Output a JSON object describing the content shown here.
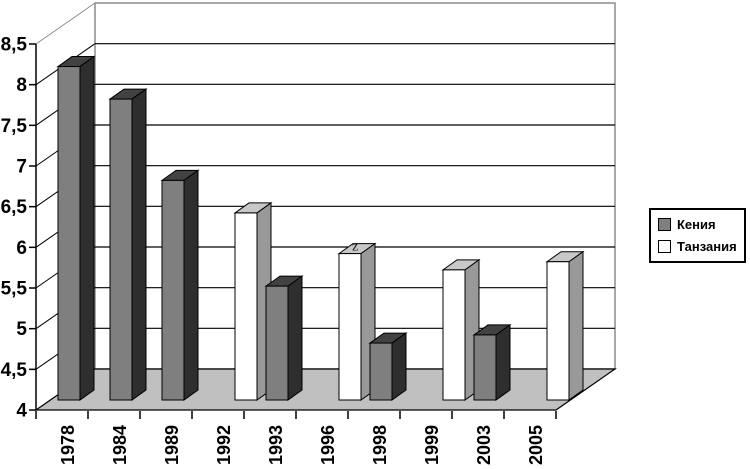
{
  "chart_data": {
    "type": "bar",
    "projection": "3d",
    "title": "",
    "categories": [
      "1978",
      "1984",
      "1989",
      "1992",
      "1993",
      "1996",
      "1998",
      "1999",
      "2003",
      "2005"
    ],
    "series": [
      {
        "name": "Кения",
        "values": [
          8.1,
          7.7,
          6.7,
          null,
          5.4,
          null,
          4.7,
          null,
          4.8,
          null
        ],
        "face_colors": {
          "front": "#7F7F7F",
          "top": "#424242",
          "side": "#2E2E2E"
        }
      },
      {
        "name": "Танзания",
        "values": [
          null,
          null,
          null,
          6.3,
          null,
          5.8,
          null,
          5.6,
          null,
          5.7
        ],
        "face_colors": {
          "front": "#FFFFFF",
          "top": "#C8C8C8",
          "side": "#999999"
        }
      }
    ],
    "xlabel": "",
    "ylabel": "",
    "ylim": [
      4,
      8.5
    ],
    "ytick_step": 0.5,
    "ytick_labels": [
      "4",
      "4,5",
      "5",
      "5,5",
      "6",
      "6,5",
      "7",
      "7,5",
      "8",
      "8,5"
    ],
    "decimal_separator": ",",
    "grid": true,
    "legend_position": "right",
    "annotation": {
      "text": "z",
      "target": "top face of 1996 bar"
    },
    "colors": {
      "floor": "#C0C0C0",
      "wall": "#FFFFFF",
      "wall_edge": "#8C8C8C",
      "gridline": "#000000",
      "axis": "#000000",
      "text": "#000000"
    }
  },
  "legend": {
    "items": [
      {
        "label": "Кения",
        "swatch": "#7F7F7F"
      },
      {
        "label": "Танзания",
        "swatch": "#FFFFFF"
      }
    ]
  }
}
